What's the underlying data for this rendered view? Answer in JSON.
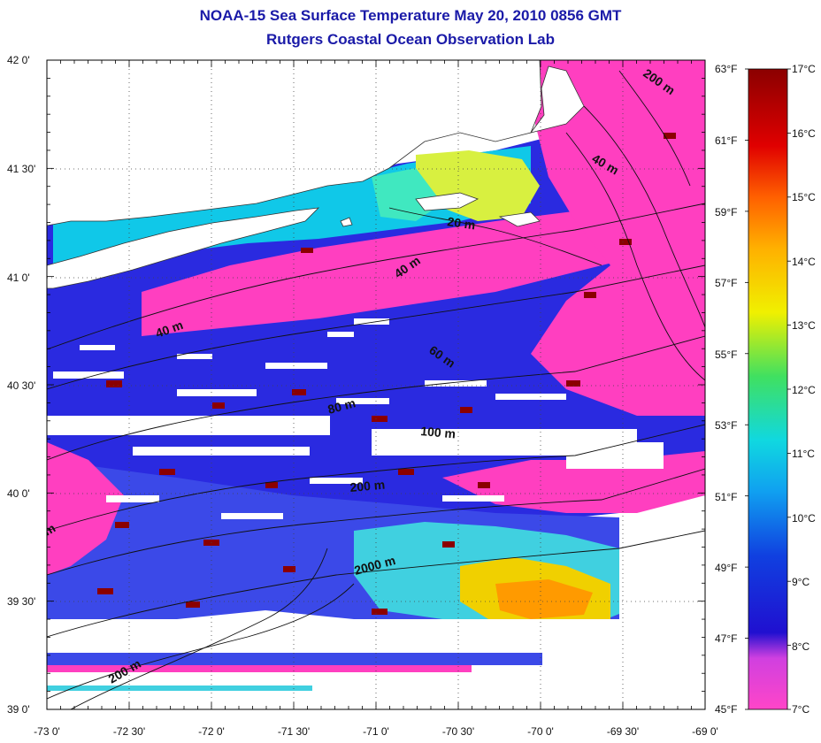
{
  "title": "NOAA-15 Sea Surface Temperature May 20, 2010 0856 GMT",
  "subtitle": "Rutgers Coastal Ocean Observation Lab",
  "lat_ticks": [
    "42 0'",
    "41 30'",
    "41 0'",
    "40 30'",
    "40 0'",
    "39 30'",
    "39 0'"
  ],
  "lon_ticks": [
    "-73 0'",
    "-72 30'",
    "-72 0'",
    "-71 30'",
    "-71 0'",
    "-70 30'",
    "-70 0'",
    "-69 30'",
    "-69 0'"
  ],
  "fahrenheit_ticks": [
    "63°F",
    "61°F",
    "59°F",
    "57°F",
    "55°F",
    "53°F",
    "51°F",
    "49°F",
    "47°F",
    "45°F"
  ],
  "celsius_ticks": [
    "17°C",
    "16°C",
    "15°C",
    "14°C",
    "13°C",
    "12°C",
    "11°C",
    "10°C",
    "9°C",
    "8°C",
    "7°C"
  ],
  "contour_labels": [
    {
      "text": "200 m"
    },
    {
      "text": "40 m"
    },
    {
      "text": "20 m"
    },
    {
      "text": "40 m"
    },
    {
      "text": "40 m"
    },
    {
      "text": "60 m"
    },
    {
      "text": "80 m"
    },
    {
      "text": "100 m"
    },
    {
      "text": "200 m"
    },
    {
      "text": "2000 m"
    },
    {
      "text": "200 m"
    },
    {
      "text": "m"
    }
  ],
  "colors": {
    "title": "#1a1aa8",
    "land": "#ffffff",
    "cold": "#ff3fc0",
    "warm": "#8b0000"
  },
  "colorbar_stops": [
    "#ff45c8",
    "#b030e8",
    "#1010d0",
    "#1080f0",
    "#10d0e0",
    "#40e060",
    "#f0f000",
    "#ffb000",
    "#ff4000",
    "#d00000",
    "#8b0000"
  ]
}
